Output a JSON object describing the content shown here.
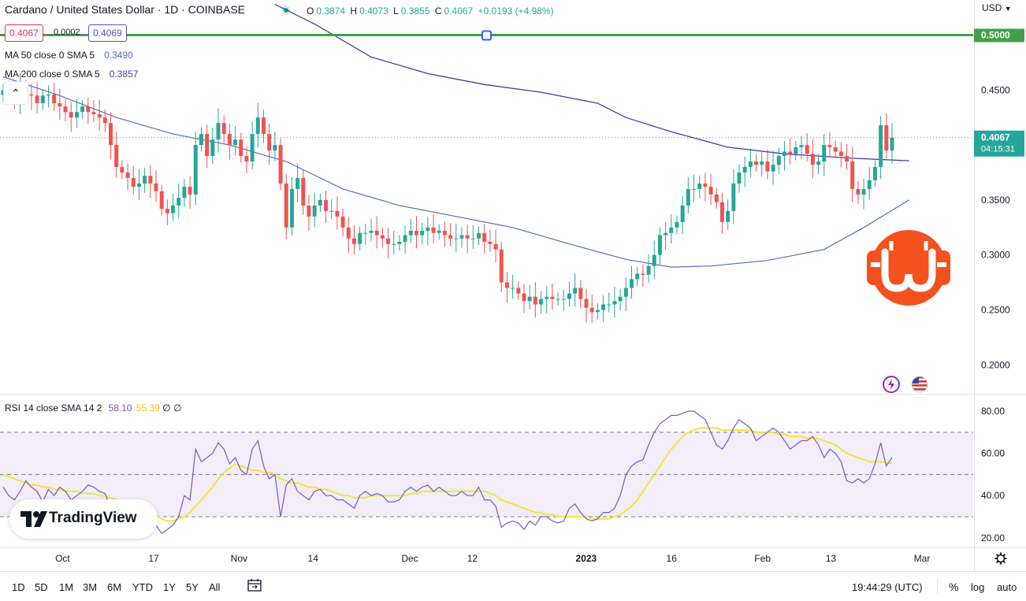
{
  "header": {
    "title": "Cardano / United States Dollar · 1D · COINBASE",
    "ohlc": [
      {
        "key": "O",
        "value": "0.3874"
      },
      {
        "key": "H",
        "value": "0.4073"
      },
      {
        "key": "L",
        "value": "0.3855"
      },
      {
        "key": "C",
        "value": "0.4067"
      }
    ],
    "change": "+0.0193 (+4.98%)",
    "currency": "USD"
  },
  "quote": {
    "bid": "0.4067",
    "spread": "0.0002",
    "ask": "0.4069"
  },
  "indicators": {
    "ma50": {
      "label": "MA 50 close 0 SMA 5",
      "value": "0.3490"
    },
    "ma200": {
      "label": "MA 200 close 0 SMA 5",
      "value": "0.3857"
    },
    "rsi": {
      "label": "RSI 14 close SMA 14 2",
      "value": "58.10",
      "sma_value": "55.39",
      "extra": "∅ ∅"
    }
  },
  "price_labels": {
    "level_line": "0.5000",
    "last_price": "0.4067",
    "countdown": "04:15:31"
  },
  "toolbar": {
    "timeframes": [
      "1D",
      "5D",
      "1M",
      "3M",
      "6M",
      "YTD",
      "1Y",
      "5Y",
      "All"
    ],
    "clock": "19:44:29 (UTC)",
    "percent_label": "%",
    "log_label": "log",
    "auto_label": "auto"
  },
  "branding": {
    "logo_text": "TradingView",
    "logo_icon": "tradingview-logo-icon"
  },
  "colors": {
    "up": "#26a69a",
    "down": "#ef5350",
    "ma50": "#5c6bc0",
    "ma200": "#4a3aa8",
    "rsi_line": "#7e57c2",
    "rsi_sma": "#f5e33b",
    "rsi_band": "#ede7f6",
    "level_line": "#43a047",
    "watermark": "#f4511e"
  },
  "icons": {
    "collapse": "chevron-up-icon",
    "calendar": "calendar-range-icon",
    "settings": "gear-icon",
    "flash": "lightning-icon",
    "flag": "us-flag-icon",
    "watermark": "bitcoin-chain-logo-icon"
  },
  "chart_data": [
    {
      "type": "candlestick",
      "title": "Cardano / United States Dollar · 1D · COINBASE",
      "ylim": [
        0.18,
        0.53
      ],
      "y_ticks": [
        "0.5000",
        "0.4500",
        "0.4067",
        "0.3500",
        "0.3000",
        "0.2500",
        "0.2000"
      ],
      "x_tick_labels": [
        {
          "label": "Oct",
          "date": "2022-10-01"
        },
        {
          "label": "17",
          "date": "2022-10-17"
        },
        {
          "label": "Nov",
          "date": "2022-11-01"
        },
        {
          "label": "14",
          "date": "2022-11-14"
        },
        {
          "label": "Dec",
          "date": "2022-12-01"
        },
        {
          "label": "12",
          "date": "2022-12-12"
        },
        {
          "label": "2023",
          "date": "2023-01-01"
        },
        {
          "label": "16",
          "date": "2023-01-16"
        },
        {
          "label": "Feb",
          "date": "2023-02-01"
        },
        {
          "label": "13",
          "date": "2023-02-13"
        },
        {
          "label": "Mar",
          "date": "2023-03-01"
        }
      ],
      "x_range": [
        "2022-09-20",
        "2023-03-10"
      ],
      "horizontal_line": 0.5,
      "closes": [
        0.45,
        0.448,
        0.44,
        0.452,
        0.446,
        0.445,
        0.438,
        0.445,
        0.446,
        0.438,
        0.435,
        0.43,
        0.425,
        0.43,
        0.435,
        0.43,
        0.428,
        0.425,
        0.42,
        0.4,
        0.38,
        0.375,
        0.37,
        0.362,
        0.365,
        0.372,
        0.365,
        0.358,
        0.342,
        0.338,
        0.345,
        0.352,
        0.362,
        0.355,
        0.4,
        0.41,
        0.39,
        0.405,
        0.42,
        0.41,
        0.4,
        0.405,
        0.39,
        0.385,
        0.41,
        0.425,
        0.41,
        0.395,
        0.4,
        0.365,
        0.325,
        0.36,
        0.37,
        0.345,
        0.335,
        0.345,
        0.35,
        0.34,
        0.34,
        0.335,
        0.325,
        0.315,
        0.31,
        0.32,
        0.32,
        0.322,
        0.318,
        0.315,
        0.31,
        0.31,
        0.312,
        0.318,
        0.322,
        0.318,
        0.322,
        0.325,
        0.32,
        0.322,
        0.318,
        0.315,
        0.315,
        0.318,
        0.315,
        0.315,
        0.32,
        0.312,
        0.31,
        0.305,
        0.275,
        0.27,
        0.27,
        0.265,
        0.258,
        0.262,
        0.255,
        0.26,
        0.262,
        0.26,
        0.26,
        0.26,
        0.265,
        0.27,
        0.26,
        0.252,
        0.248,
        0.25,
        0.255,
        0.255,
        0.258,
        0.262,
        0.27,
        0.278,
        0.283,
        0.282,
        0.29,
        0.3,
        0.318,
        0.32,
        0.325,
        0.33,
        0.345,
        0.36,
        0.36,
        0.365,
        0.362,
        0.355,
        0.348,
        0.33,
        0.34,
        0.365,
        0.375,
        0.38,
        0.385,
        0.382,
        0.385,
        0.376,
        0.382,
        0.39,
        0.394,
        0.392,
        0.398,
        0.4,
        0.392,
        0.382,
        0.385,
        0.4,
        0.398,
        0.394,
        0.39,
        0.385,
        0.36,
        0.355,
        0.36,
        0.368,
        0.38,
        0.418,
        0.395,
        0.4067
      ]
    },
    {
      "type": "line",
      "name": "MA 50 close 0 SMA 5",
      "points": [
        [
          0,
          0.462
        ],
        [
          10,
          0.445
        ],
        [
          20,
          0.425
        ],
        [
          30,
          0.41
        ],
        [
          40,
          0.4
        ],
        [
          50,
          0.385
        ],
        [
          60,
          0.36
        ],
        [
          70,
          0.345
        ],
        [
          80,
          0.335
        ],
        [
          90,
          0.325
        ],
        [
          100,
          0.31
        ],
        [
          110,
          0.296
        ],
        [
          118,
          0.289
        ],
        [
          125,
          0.29
        ],
        [
          135,
          0.295
        ],
        [
          145,
          0.305
        ],
        [
          152,
          0.325
        ],
        [
          160,
          0.35
        ]
      ]
    },
    {
      "type": "line",
      "name": "MA 200 close 0 SMA 5",
      "points": [
        [
          48,
          0.528
        ],
        [
          55,
          0.51
        ],
        [
          65,
          0.48
        ],
        [
          75,
          0.465
        ],
        [
          85,
          0.455
        ],
        [
          95,
          0.448
        ],
        [
          105,
          0.438
        ],
        [
          110,
          0.425
        ],
        [
          118,
          0.412
        ],
        [
          128,
          0.398
        ],
        [
          138,
          0.392
        ],
        [
          150,
          0.388
        ],
        [
          160,
          0.3857
        ]
      ]
    },
    {
      "type": "line",
      "title": "RSI 14 close SMA 14 2",
      "ylim": [
        15,
        85
      ],
      "y_ticks": [
        "80.00",
        "60.00",
        "40.00",
        "20.00"
      ],
      "bands": [
        30,
        50,
        70
      ],
      "series": [
        {
          "name": "RSI",
          "values": [
            44,
            40,
            38,
            42,
            47,
            44,
            42,
            37,
            43,
            40,
            44,
            42,
            38,
            40,
            42,
            45,
            44,
            42,
            41,
            34,
            28,
            30,
            27,
            25,
            28,
            32,
            28,
            26,
            22,
            24,
            26,
            30,
            40,
            38,
            62,
            56,
            58,
            60,
            65,
            62,
            55,
            58,
            52,
            50,
            62,
            66,
            54,
            48,
            50,
            30,
            45,
            48,
            42,
            40,
            38,
            42,
            43,
            40,
            40,
            38,
            38,
            36,
            34,
            40,
            42,
            40,
            41,
            40,
            37,
            37,
            38,
            42,
            44,
            42,
            44,
            45,
            42,
            44,
            42,
            40,
            40,
            42,
            40,
            40,
            44,
            38,
            38,
            35,
            25,
            27,
            28,
            27,
            24,
            28,
            26,
            30,
            30,
            28,
            27,
            28,
            34,
            36,
            32,
            29,
            28,
            29,
            32,
            32,
            34,
            40,
            50,
            54,
            56,
            57,
            64,
            70,
            74,
            76,
            78,
            78,
            79,
            80,
            80,
            78,
            76,
            70,
            64,
            62,
            66,
            72,
            76,
            74,
            72,
            66,
            68,
            70,
            72,
            70,
            66,
            62,
            64,
            66,
            66,
            68,
            64,
            58,
            62,
            60,
            56,
            47,
            46,
            48,
            46,
            48,
            55,
            65,
            54,
            58.1
          ]
        },
        {
          "name": "RSI SMA",
          "values": [
            50,
            49,
            48,
            47,
            46,
            45,
            45,
            44,
            44,
            43,
            43,
            42,
            42,
            42,
            41,
            41,
            41,
            40,
            40,
            39,
            38,
            37,
            36,
            35,
            34,
            33,
            32,
            31,
            29,
            28,
            28,
            29,
            30,
            32,
            35,
            38,
            41,
            44,
            48,
            51,
            53,
            55,
            54,
            53,
            52,
            52,
            51,
            51,
            50,
            48,
            47,
            46,
            46,
            45,
            44,
            44,
            43,
            43,
            42,
            41,
            40,
            40,
            39,
            39,
            39,
            40,
            40,
            40,
            40,
            40,
            40,
            40,
            41,
            41,
            42,
            42,
            42,
            42,
            42,
            42,
            42,
            42,
            42,
            42,
            42,
            42,
            41,
            40,
            38,
            37,
            36,
            35,
            34,
            33,
            32,
            32,
            31,
            31,
            30,
            30,
            30,
            30,
            30,
            30,
            29,
            29,
            29,
            29,
            30,
            31,
            33,
            35,
            38,
            42,
            46,
            50,
            54,
            58,
            62,
            65,
            68,
            70,
            71,
            72,
            72,
            72,
            72,
            71,
            71,
            71,
            71,
            71,
            71,
            70,
            70,
            70,
            70,
            69,
            69,
            68,
            68,
            68,
            67,
            67,
            67,
            66,
            65,
            64,
            62,
            60,
            59,
            58,
            57,
            56,
            56,
            56,
            55.5,
            55.39
          ]
        }
      ]
    }
  ]
}
